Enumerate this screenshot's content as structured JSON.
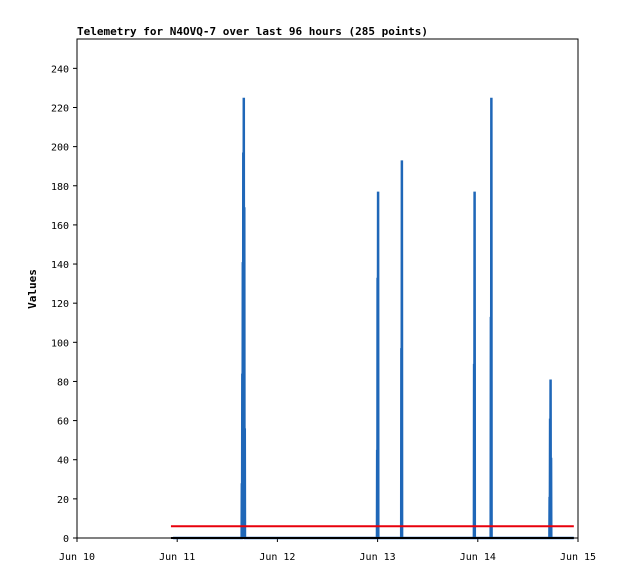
{
  "chart_data": {
    "type": "line",
    "title": "Telemetry for N4OVQ-7 over last 96 hours (285 points)",
    "xlabel": "",
    "ylabel": "Values",
    "xlim": [
      "Jun 10",
      "Jun 15"
    ],
    "ylim": [
      0,
      255
    ],
    "x_ticks": [
      "Jun 10",
      "Jun 11",
      "Jun 12",
      "Jun 13",
      "Jun 14",
      "Jun 15"
    ],
    "y_ticks": [
      0,
      20,
      40,
      60,
      80,
      100,
      120,
      140,
      160,
      180,
      200,
      220,
      240
    ],
    "grid": false,
    "legend": "none",
    "series": [
      {
        "color": "#1f67b8",
        "points": [
          [
            "Jun 10 23:00",
            0
          ],
          [
            "Jun 11 15:26",
            0
          ],
          [
            "Jun 11 15:29",
            28
          ],
          [
            "Jun 11 15:32",
            0
          ],
          [
            "Jun 11 15:36",
            84
          ],
          [
            "Jun 11 15:39",
            0
          ],
          [
            "Jun 11 15:43",
            141
          ],
          [
            "Jun 11 15:46",
            0
          ],
          [
            "Jun 11 15:50",
            197
          ],
          [
            "Jun 11 15:53",
            0
          ],
          [
            "Jun 11 15:57",
            225
          ],
          [
            "Jun 11 16:00",
            0
          ],
          [
            "Jun 11 16:04",
            169
          ],
          [
            "Jun 11 16:07",
            0
          ],
          [
            "Jun 11 16:11",
            56
          ],
          [
            "Jun 11 16:14",
            0
          ],
          [
            "Jun 12 23:51",
            0
          ],
          [
            "Jun 12 23:54",
            45
          ],
          [
            "Jun 12 23:57",
            0
          ],
          [
            "Jun 13 00:00",
            133
          ],
          [
            "Jun 13 00:03",
            0
          ],
          [
            "Jun 13 00:07",
            177
          ],
          [
            "Jun 13 00:10",
            0
          ],
          [
            "Jun 13 05:39",
            0
          ],
          [
            "Jun 13 05:42",
            97
          ],
          [
            "Jun 13 05:45",
            0
          ],
          [
            "Jun 13 05:49",
            193
          ],
          [
            "Jun 13 05:52",
            0
          ],
          [
            "Jun 13 23:04",
            0
          ],
          [
            "Jun 13 23:07",
            89
          ],
          [
            "Jun 13 23:10",
            0
          ],
          [
            "Jun 13 23:14",
            177
          ],
          [
            "Jun 13 23:17",
            0
          ],
          [
            "Jun 14 03:05",
            0
          ],
          [
            "Jun 14 03:08",
            113
          ],
          [
            "Jun 14 03:11",
            0
          ],
          [
            "Jun 14 03:15",
            225
          ],
          [
            "Jun 14 03:18",
            0
          ],
          [
            "Jun 14 17:09",
            0
          ],
          [
            "Jun 14 17:12",
            21
          ],
          [
            "Jun 14 17:15",
            0
          ],
          [
            "Jun 14 17:19",
            61
          ],
          [
            "Jun 14 17:22",
            0
          ],
          [
            "Jun 14 17:26",
            81
          ],
          [
            "Jun 14 17:29",
            0
          ],
          [
            "Jun 14 17:33",
            41
          ],
          [
            "Jun 14 17:36",
            0
          ],
          [
            "Jun 14 23:00",
            0
          ]
        ]
      },
      {
        "color": "#e8000b",
        "points": [
          [
            "Jun 10 22:30",
            6
          ],
          [
            "Jun 14 23:00",
            6
          ]
        ]
      },
      {
        "color": "#000000",
        "points": [
          [
            "Jun 10 22:30",
            0
          ],
          [
            "Jun 14 23:00",
            0
          ]
        ]
      }
    ]
  }
}
